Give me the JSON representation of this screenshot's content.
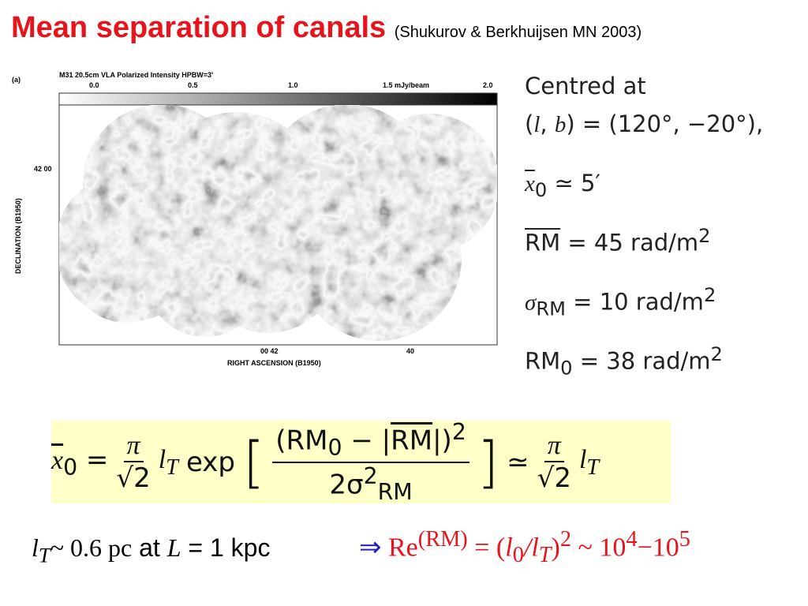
{
  "header": {
    "title": "Mean separation of canals",
    "citation": "(Shukurov & Berkhuijsen MN 2003)"
  },
  "figure": {
    "panel": "(a)",
    "caption_top": "M31   20.5cm   VLA   Polarized Intensity   HPBW=3'",
    "colorbar_labels": [
      "0.0",
      "0.5",
      "1.0",
      "1.5 mJy/beam",
      "2.0"
    ],
    "y_label": "DECLINATION (B1950)",
    "y_tick": "42 00",
    "x_ticks": [
      "00 42",
      "40"
    ],
    "x_label": "RIGHT ASCENSION (B1950)"
  },
  "side_notes": {
    "centred": "Centred at",
    "lb": [
      "(",
      "l",
      ", ",
      "b",
      ") = (120°, −20°),"
    ],
    "x0": [
      "x",
      "0",
      " ≃ 5′"
    ],
    "rm_mean": [
      "RM",
      " = 45 rad/m",
      "2"
    ],
    "sigma": [
      "σ",
      "RM",
      " = 10 rad/m",
      "2"
    ],
    "rm0": [
      "RM",
      "0",
      " = 38 rad/m",
      "2"
    ]
  },
  "formula": {
    "lhs": [
      "x",
      "0",
      " = "
    ],
    "pi": "π",
    "sqrt2": "√2",
    "lT": [
      "l",
      "T"
    ],
    "exp": "exp",
    "num": [
      "(RM",
      "0",
      " − |",
      "RM",
      "|)",
      "2"
    ],
    "den": [
      "2σ",
      "2",
      "RM"
    ],
    "approx": "≃"
  },
  "bottom": {
    "left": [
      "l",
      "T",
      "~ 0.6 pc",
      " at ",
      "L",
      " = 1 kpc"
    ],
    "right": [
      "⇒ ",
      "Re",
      "(RM)",
      " = (",
      "l",
      "0",
      "/",
      "l",
      "T",
      ")",
      "2",
      " ~ 10",
      "4",
      "−10",
      "5"
    ]
  }
}
